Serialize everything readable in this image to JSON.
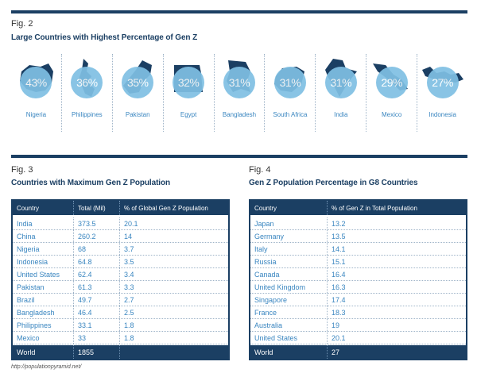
{
  "fig2": {
    "label": "Fig. 2",
    "title": "Large Countries with Highest Percentage of Gen Z"
  },
  "fig3": {
    "label": "Fig. 3",
    "title": "Countries with Maximum Gen Z Population"
  },
  "fig4": {
    "label": "Fig. 4",
    "title": "Gen Z Population Percentage in G8 Countries"
  },
  "source": "http://populationpyramid.net/",
  "colors": {
    "navy": "#1b3f63",
    "light_blue": "#7fc0e3",
    "text_blue": "#3a86c0"
  },
  "chart_data": [
    {
      "type": "bar",
      "title": "Large Countries with Highest Percentage of Gen Z",
      "categories": [
        "Nigeria",
        "Philippines",
        "Pakistan",
        "Egypt",
        "Bangladesh",
        "South Africa",
        "India",
        "Mexico",
        "Indonesia"
      ],
      "values": [
        43,
        36,
        35,
        32,
        31,
        31,
        31,
        29,
        27
      ],
      "value_labels": [
        "43%",
        "36%",
        "35%",
        "32%",
        "31%",
        "31%",
        "31%",
        "29%",
        "27%"
      ]
    },
    {
      "type": "table",
      "title": "Countries with Maximum Gen Z Population",
      "columns": [
        "Country",
        "Total (Mil)",
        "% of Global Gen Z Population"
      ],
      "rows": [
        [
          "India",
          "373.5",
          "20.1"
        ],
        [
          "China",
          "260.2",
          "14"
        ],
        [
          "Nigeria",
          "68",
          "3.7"
        ],
        [
          "Indonesia",
          "64.8",
          "3.5"
        ],
        [
          "United States",
          "62.4",
          "3.4"
        ],
        [
          "Pakistan",
          "61.3",
          "3.3"
        ],
        [
          "Brazil",
          "49.7",
          "2.7"
        ],
        [
          "Bangladesh",
          "46.4",
          "2.5"
        ],
        [
          "Philippines",
          "33.1",
          "1.8"
        ],
        [
          "Mexico",
          "33",
          "1.8"
        ]
      ],
      "footer": [
        "World",
        "1855",
        ""
      ]
    },
    {
      "type": "table",
      "title": "Gen Z Population Percentage in G8 Countries",
      "columns": [
        "Country",
        "% of Gen Z in Total Population"
      ],
      "rows": [
        [
          "Japan",
          "13.2"
        ],
        [
          "Germany",
          "13.5"
        ],
        [
          "Italy",
          "14.1"
        ],
        [
          "Russia",
          "15.1"
        ],
        [
          "Canada",
          "16.4"
        ],
        [
          "United Kingdom",
          "16.3"
        ],
        [
          "Singapore",
          "17.4"
        ],
        [
          "France",
          "18.3"
        ],
        [
          "Australia",
          "19"
        ],
        [
          "United States",
          "20.1"
        ]
      ],
      "footer": [
        "World",
        "27"
      ]
    }
  ]
}
